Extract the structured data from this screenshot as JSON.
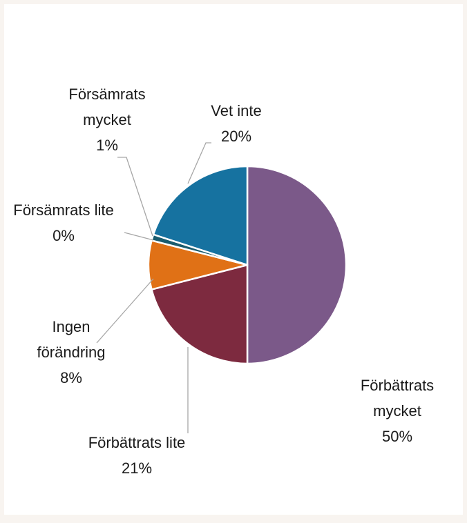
{
  "chart_data": {
    "type": "pie",
    "categories": [
      "Förbättrats mycket",
      "Förbättrats lite",
      "Ingen förändring",
      "Försämrats lite",
      "Försämrats mycket",
      "Vet inte"
    ],
    "values": [
      50,
      21,
      8,
      0,
      1,
      20
    ],
    "value_labels": [
      "50%",
      "21%",
      "8%",
      "0%",
      "1%",
      "20%"
    ],
    "colors": [
      "#7b5989",
      "#7d2a3f",
      "#e07116",
      "#7aa3b8",
      "#1a5c6e",
      "#1672a0"
    ]
  }
}
